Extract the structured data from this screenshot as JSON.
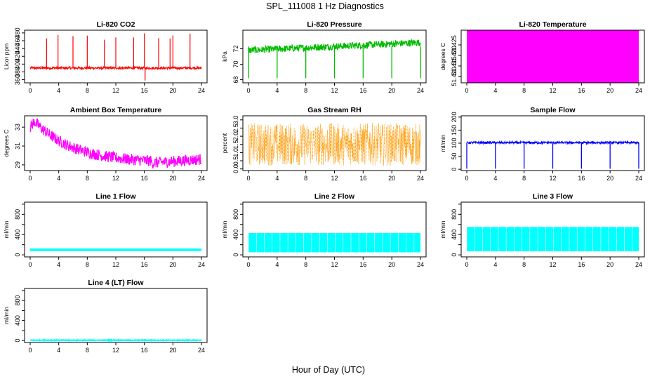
{
  "title": "SPL_111008  1 Hz Diagnostics",
  "xlabel": "Hour of Day (UTC)",
  "chart_data": [
    {
      "type": "line",
      "title": "Li-820 CO2",
      "ylabel": "Licor ppm",
      "color": "#ff0000",
      "xlim": [
        0,
        24
      ],
      "xticks": [
        0,
        4,
        8,
        12,
        16,
        20,
        24
      ],
      "ylim": [
        352,
        487
      ],
      "yticks": [
        360,
        380,
        400,
        420,
        440,
        460,
        480
      ],
      "baseline": 390,
      "noise": 6,
      "spikes": [
        2.3,
        3.9,
        6.0,
        8.0,
        10.4,
        12.0,
        14.5,
        16.0,
        18.0,
        19.6,
        20.0,
        22.4
      ],
      "spike_top": 472,
      "dips_at": [
        16.1
      ],
      "dip_low": 358
    },
    {
      "type": "line",
      "title": "Li-820 Pressure",
      "ylabel": "kPa",
      "color": "#00bb00",
      "xlim": [
        0,
        24
      ],
      "xticks": [
        0,
        4,
        8,
        12,
        16,
        20,
        24
      ],
      "ylim": [
        67.6,
        74.4
      ],
      "yticks": [
        68,
        70,
        72
      ],
      "start": 71.8,
      "end": 72.8,
      "noise": 0.45,
      "dips_at": [
        0.0,
        4.0,
        8.0,
        12.0,
        16.0,
        20.0,
        24.0
      ],
      "dip_low": 68.2
    },
    {
      "type": "area",
      "title": "Li-820 Temperature",
      "ylabel": "degrees C",
      "color": "#ff00ff",
      "xlim": [
        0,
        24
      ],
      "xticks": [
        0,
        4,
        8,
        12,
        16,
        20,
        24
      ],
      "ylim": [
        51.407,
        51.432
      ],
      "yticks": [
        51.41,
        51.415,
        51.42,
        51.425
      ],
      "ytick_labels": [
        "51.410",
        "51.415",
        "51.420",
        "51.425"
      ],
      "band": [
        51.407,
        51.432
      ]
    },
    {
      "type": "line",
      "title": "Ambient Box Temperature",
      "ylabel": "degrees C",
      "color": "#ff00ff",
      "xlim": [
        0,
        24
      ],
      "xticks": [
        0,
        4,
        8,
        12,
        16,
        20,
        24
      ],
      "ylim": [
        28.4,
        34.2
      ],
      "yticks": [
        29,
        31,
        33
      ],
      "start": 33.0,
      "peak": 33.6,
      "min": 29.2,
      "end": 29.6,
      "noise": 0.6
    },
    {
      "type": "scatter",
      "title": "Gas Stream RH",
      "ylabel": "percent",
      "color": "#ff9900",
      "xlim": [
        0,
        24
      ],
      "xticks": [
        0,
        4,
        8,
        12,
        16,
        20,
        24
      ],
      "ylim": [
        -0.1,
        3.25
      ],
      "yticks": [
        0.0,
        0.5,
        1.0,
        1.5,
        2.0,
        2.5,
        3.0
      ],
      "ytick_labels": [
        "0.0",
        "0.5",
        "1.0",
        "1.5",
        "2.0",
        "2.5",
        "3.0"
      ],
      "center": 1.5,
      "spread": 1.3
    },
    {
      "type": "line",
      "title": "Sample Flow",
      "ylabel": "ml/min",
      "color": "#0000ff",
      "xlim": [
        0,
        24
      ],
      "xticks": [
        0,
        4,
        8,
        12,
        16,
        20,
        24
      ],
      "ylim": [
        -5,
        205
      ],
      "yticks": [
        0,
        50,
        100,
        150,
        200
      ],
      "baseline": 102,
      "noise": 4,
      "dips_at": [
        0.0,
        4.0,
        8.0,
        12.0,
        16.0,
        20.0,
        24.0
      ],
      "dip_low": 2
    },
    {
      "type": "area",
      "title": "Line 1 Flow",
      "ylabel": "ml/min",
      "color": "#00ffff",
      "xlim": [
        0,
        24
      ],
      "xticks": [
        0,
        4,
        8,
        12,
        16,
        20,
        24
      ],
      "ylim": [
        -40,
        1040
      ],
      "yticks": [
        0,
        200,
        400,
        600,
        800,
        1000
      ],
      "ytick_labels": [
        "0",
        "",
        "400",
        "",
        "800",
        ""
      ],
      "band": [
        75,
        125
      ]
    },
    {
      "type": "area",
      "title": "Line 2 Flow",
      "ylabel": "ml/min",
      "color": "#00ffff",
      "xlim": [
        0,
        24
      ],
      "xticks": [
        0,
        4,
        8,
        12,
        16,
        20,
        24
      ],
      "ylim": [
        -40,
        1040
      ],
      "yticks": [
        0,
        200,
        400,
        600,
        800,
        1000
      ],
      "ytick_labels": [
        "0",
        "",
        "400",
        "",
        "800",
        ""
      ],
      "band": [
        50,
        430
      ]
    },
    {
      "type": "area",
      "title": "Line 3 Flow",
      "ylabel": "ml/min",
      "color": "#00ffff",
      "xlim": [
        0,
        24
      ],
      "xticks": [
        0,
        4,
        8,
        12,
        16,
        20,
        24
      ],
      "ylim": [
        -40,
        1040
      ],
      "yticks": [
        0,
        200,
        400,
        600,
        800,
        1000
      ],
      "ytick_labels": [
        "0",
        "",
        "400",
        "",
        "800",
        ""
      ],
      "band": [
        70,
        550
      ]
    },
    {
      "type": "line",
      "title": "Line 4 (LT) Flow",
      "ylabel": "ml/min",
      "color": "#00ffff",
      "xlim": [
        0,
        24
      ],
      "xticks": [
        0,
        4,
        8,
        12,
        16,
        20,
        24
      ],
      "ylim": [
        -40,
        1040
      ],
      "yticks": [
        0,
        200,
        400,
        600,
        800,
        1000
      ],
      "ytick_labels": [
        "0",
        "",
        "400",
        "",
        "800",
        ""
      ],
      "band": [
        -2,
        12
      ]
    }
  ]
}
